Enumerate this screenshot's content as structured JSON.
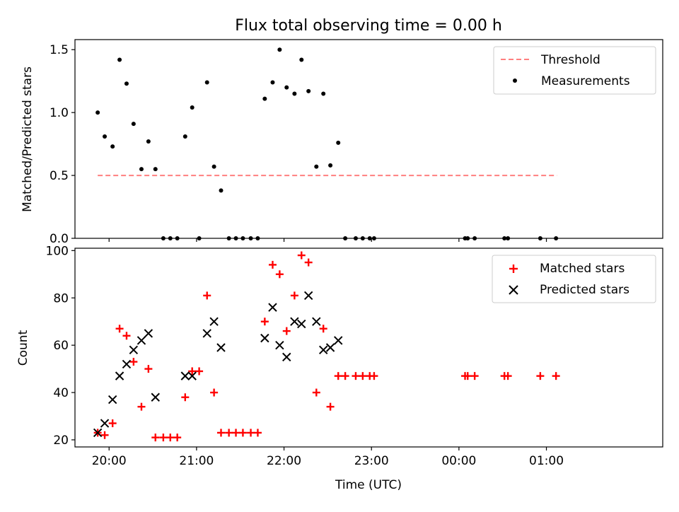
{
  "title": "Flux total observing time = 0.00 h",
  "colors": {
    "threshold": "#ff7f7f",
    "measurement": "#000000",
    "matched": "#ff0000",
    "predicted": "#000000"
  },
  "chart_data": [
    {
      "type": "scatter",
      "ylabel": "Matched/Predicted stars",
      "ylim": [
        0.0,
        1.58
      ],
      "yticks": [
        "0.0",
        "0.5",
        "1.0",
        "1.5"
      ],
      "xlim": [
        -0.39,
        6.33
      ],
      "grid": false,
      "legend_position": "top-right",
      "threshold": {
        "name": "Threshold",
        "value": 0.5,
        "x_range": [
          -0.13,
          5.12
        ]
      },
      "series": [
        {
          "name": "Measurements",
          "points": [
            [
              -0.13,
              1.0
            ],
            [
              -0.05,
              0.81
            ],
            [
              0.04,
              0.73
            ],
            [
              0.12,
              1.42
            ],
            [
              0.2,
              1.23
            ],
            [
              0.28,
              0.91
            ],
            [
              0.37,
              0.55
            ],
            [
              0.45,
              0.77
            ],
            [
              0.53,
              0.55
            ],
            [
              0.62,
              0.0
            ],
            [
              0.7,
              0.0
            ],
            [
              0.78,
              0.0
            ],
            [
              0.87,
              0.81
            ],
            [
              0.95,
              1.04
            ],
            [
              1.03,
              0.0
            ],
            [
              1.12,
              1.24
            ],
            [
              1.2,
              0.57
            ],
            [
              1.28,
              0.38
            ],
            [
              1.37,
              0.0
            ],
            [
              1.45,
              0.0
            ],
            [
              1.53,
              0.0
            ],
            [
              1.62,
              0.0
            ],
            [
              1.7,
              0.0
            ],
            [
              1.78,
              1.11
            ],
            [
              1.87,
              1.24
            ],
            [
              1.95,
              1.5
            ],
            [
              2.03,
              1.2
            ],
            [
              2.12,
              1.15
            ],
            [
              2.2,
              1.42
            ],
            [
              2.28,
              1.17
            ],
            [
              2.37,
              0.57
            ],
            [
              2.45,
              1.15
            ],
            [
              2.53,
              0.58
            ],
            [
              2.62,
              0.76
            ],
            [
              2.7,
              0.0
            ],
            [
              2.82,
              0.0
            ],
            [
              2.9,
              0.0
            ],
            [
              2.98,
              0.0
            ],
            [
              3.03,
              0.0
            ],
            [
              4.07,
              0.0
            ],
            [
              4.1,
              0.0
            ],
            [
              4.18,
              0.0
            ],
            [
              4.52,
              0.0
            ],
            [
              4.56,
              0.0
            ],
            [
              4.93,
              0.0
            ],
            [
              5.11,
              0.0
            ]
          ]
        }
      ]
    },
    {
      "type": "scatter",
      "xlabel": "Time (UTC)",
      "ylabel": "Count",
      "ylim": [
        17,
        101
      ],
      "yticks": [
        "20",
        "40",
        "60",
        "80",
        "100"
      ],
      "xlim": [
        -0.39,
        6.33
      ],
      "xticks": [
        "20:00",
        "21:00",
        "22:00",
        "23:00",
        "00:00",
        "01:00"
      ],
      "grid": false,
      "legend_position": "top-right",
      "series": [
        {
          "name": "Matched stars",
          "points": [
            [
              -0.13,
              23
            ],
            [
              -0.05,
              22
            ],
            [
              0.04,
              27
            ],
            [
              0.12,
              67
            ],
            [
              0.2,
              64
            ],
            [
              0.28,
              53
            ],
            [
              0.37,
              34
            ],
            [
              0.45,
              50
            ],
            [
              0.53,
              21
            ],
            [
              0.62,
              21
            ],
            [
              0.7,
              21
            ],
            [
              0.78,
              21
            ],
            [
              0.87,
              38
            ],
            [
              0.95,
              49
            ],
            [
              1.03,
              49
            ],
            [
              1.12,
              81
            ],
            [
              1.2,
              40
            ],
            [
              1.28,
              23
            ],
            [
              1.37,
              23
            ],
            [
              1.45,
              23
            ],
            [
              1.53,
              23
            ],
            [
              1.62,
              23
            ],
            [
              1.7,
              23
            ],
            [
              1.78,
              70
            ],
            [
              1.87,
              94
            ],
            [
              1.95,
              90
            ],
            [
              2.03,
              66
            ],
            [
              2.12,
              81
            ],
            [
              2.2,
              98
            ],
            [
              2.28,
              95
            ],
            [
              2.37,
              40
            ],
            [
              2.45,
              67
            ],
            [
              2.53,
              34
            ],
            [
              2.62,
              47
            ],
            [
              2.7,
              47
            ],
            [
              2.82,
              47
            ],
            [
              2.9,
              47
            ],
            [
              2.98,
              47
            ],
            [
              3.03,
              47
            ],
            [
              4.07,
              47
            ],
            [
              4.1,
              47
            ],
            [
              4.18,
              47
            ],
            [
              4.52,
              47
            ],
            [
              4.56,
              47
            ],
            [
              4.93,
              47
            ],
            [
              5.11,
              47
            ]
          ]
        },
        {
          "name": "Predicted stars",
          "points": [
            [
              -0.13,
              23
            ],
            [
              -0.05,
              27
            ],
            [
              0.04,
              37
            ],
            [
              0.12,
              47
            ],
            [
              0.2,
              52
            ],
            [
              0.28,
              58
            ],
            [
              0.37,
              62
            ],
            [
              0.45,
              65
            ],
            [
              0.53,
              38
            ],
            [
              0.87,
              47
            ],
            [
              0.95,
              47
            ],
            [
              1.12,
              65
            ],
            [
              1.2,
              70
            ],
            [
              1.28,
              59
            ],
            [
              1.78,
              63
            ],
            [
              1.87,
              76
            ],
            [
              1.95,
              60
            ],
            [
              2.03,
              55
            ],
            [
              2.12,
              70
            ],
            [
              2.2,
              69
            ],
            [
              2.28,
              81
            ],
            [
              2.37,
              70
            ],
            [
              2.45,
              58
            ],
            [
              2.53,
              59
            ],
            [
              2.62,
              62
            ]
          ]
        }
      ]
    }
  ]
}
